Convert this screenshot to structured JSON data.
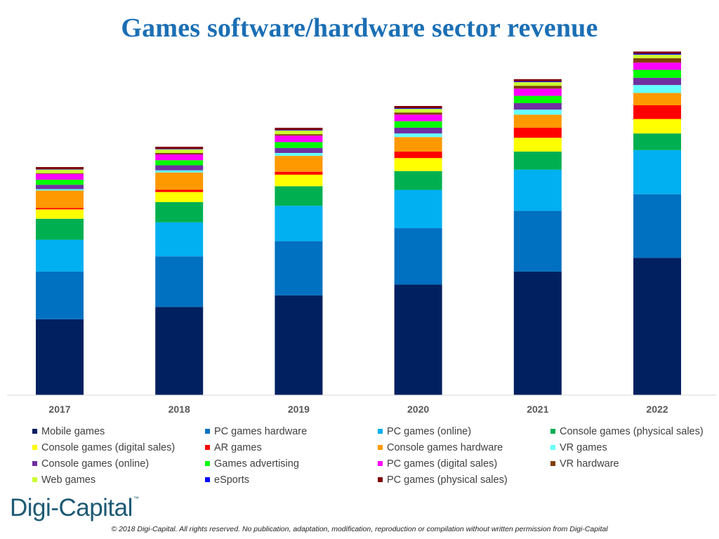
{
  "title": "Games software/hardware sector revenue",
  "logo": {
    "text": "Digi-Capital",
    "tm": "™"
  },
  "copyright": "© 2018 Digi-Capital. All rights reserved. No publication, adaptation, modification, reproduction or compilation without written permission from Digi-Capital",
  "chart_data": {
    "type": "bar",
    "stacked": true,
    "title": "Games software/hardware sector revenue",
    "xlabel": "",
    "ylabel": "",
    "ylim": [
      0,
      500
    ],
    "grid": false,
    "legend_position": "bottom",
    "categories": [
      "2017",
      "2018",
      "2019",
      "2020",
      "2021",
      "2022"
    ],
    "series": [
      {
        "name": "Mobile games",
        "color": "#002060",
        "values": [
          105,
          122,
          138,
          153,
          171,
          190
        ]
      },
      {
        "name": "PC games hardware",
        "color": "#0070c0",
        "values": [
          66,
          70,
          75,
          78,
          84,
          88
        ]
      },
      {
        "name": "PC games (online)",
        "color": "#00b0f0",
        "values": [
          44,
          47,
          49,
          53,
          57,
          61
        ]
      },
      {
        "name": "Console games (physical sales)",
        "color": "#00b050",
        "values": [
          29,
          28,
          27,
          26,
          25,
          23
        ]
      },
      {
        "name": "Console games (digital sales)",
        "color": "#ffff00",
        "values": [
          13,
          14,
          16,
          18,
          19,
          20
        ]
      },
      {
        "name": "AR games",
        "color": "#ff0000",
        "values": [
          2,
          3,
          4,
          9,
          14,
          19
        ]
      },
      {
        "name": "Console games hardware",
        "color": "#ff9900",
        "values": [
          24,
          24,
          22,
          20,
          18,
          17
        ]
      },
      {
        "name": "VR games",
        "color": "#66ffff",
        "values": [
          2,
          3,
          4,
          5,
          7,
          11
        ]
      },
      {
        "name": "Console games (online)",
        "color": "#7030a0",
        "values": [
          6,
          7,
          7,
          8,
          9,
          10
        ]
      },
      {
        "name": "Games advertising",
        "color": "#00ff00",
        "values": [
          7,
          7,
          8,
          9,
          10,
          11
        ]
      },
      {
        "name": "PC games (digital sales)",
        "color": "#ff00ff",
        "values": [
          8,
          8,
          9,
          9,
          10,
          10
        ]
      },
      {
        "name": "VR hardware",
        "color": "#7f3f00",
        "values": [
          1,
          2,
          2,
          3,
          4,
          6
        ]
      },
      {
        "name": "Web games",
        "color": "#ccff33",
        "values": [
          5,
          5,
          5,
          5,
          5,
          5
        ]
      },
      {
        "name": "eSports",
        "color": "#0000ff",
        "values": [
          0.5,
          0.6,
          0.8,
          1,
          1.1,
          1.3
        ]
      },
      {
        "name": "PC games (physical sales)",
        "color": "#800000",
        "values": [
          3,
          3,
          3,
          3,
          3,
          3
        ]
      }
    ]
  }
}
